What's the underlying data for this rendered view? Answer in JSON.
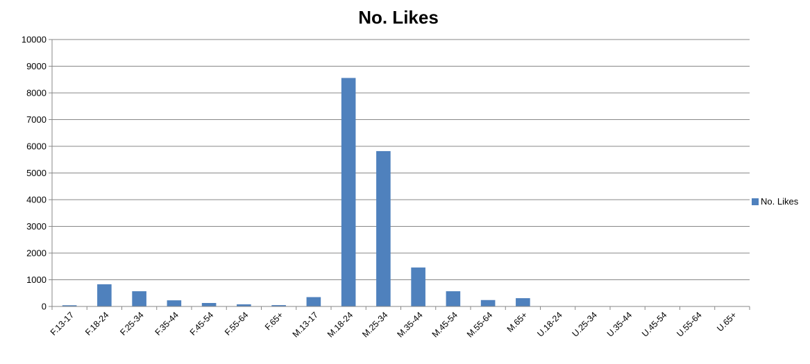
{
  "chart_data": {
    "type": "bar",
    "title": "No. Likes",
    "xlabel": "",
    "ylabel": "",
    "ylim": [
      0,
      10000
    ],
    "yticks": [
      0,
      1000,
      2000,
      3000,
      4000,
      5000,
      6000,
      7000,
      8000,
      9000,
      10000
    ],
    "grid": true,
    "legend_position": "right",
    "categories": [
      "F.13-17",
      "F.18-24",
      "F.25-34",
      "F.35-44",
      "F.45-54",
      "F.55-64",
      "F.65+",
      "M.13-17",
      "M.18-24",
      "M.25-34",
      "M.35-44",
      "M.45-54",
      "M.55-64",
      "M.65+",
      "U.18-24",
      "U.25-34",
      "U.35-44",
      "U.45-54",
      "U.55-64",
      "U.65+"
    ],
    "series": [
      {
        "name": "No. Likes",
        "color": "#4f81bd",
        "values": [
          45,
          830,
          570,
          230,
          130,
          80,
          50,
          350,
          8560,
          5820,
          1460,
          570,
          240,
          310,
          0,
          0,
          0,
          0,
          0,
          0
        ]
      }
    ]
  },
  "colors": {
    "bar": "#4f81bd",
    "grid": "#878787",
    "axis": "#878787",
    "background": "#ffffff"
  }
}
